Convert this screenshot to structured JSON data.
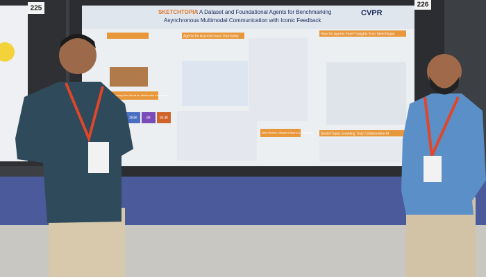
{
  "booth_numbers": [
    "225",
    "226"
  ],
  "poster": {
    "title_highlight": "SKETCHTOPIA",
    "title_line1": ": A Dataset and Foundational Agents for Benchmarking",
    "title_line2": "Asynchronous Multimodal Communication with Iconic Feedback",
    "venue": "CVPR",
    "sections": [
      "Agents for Asynchronous Gameplay",
      "How Do Agents Fare? Insights from Sketchtopia",
      "A Pictionary-like World for Multimodal Interaction",
      "New Metrics: Measure Async & Feedback",
      "SketchTopia: Enabling Truly Collaborative AI"
    ],
    "stats": [
      "263K",
      "8K",
      "18.4K"
    ]
  }
}
